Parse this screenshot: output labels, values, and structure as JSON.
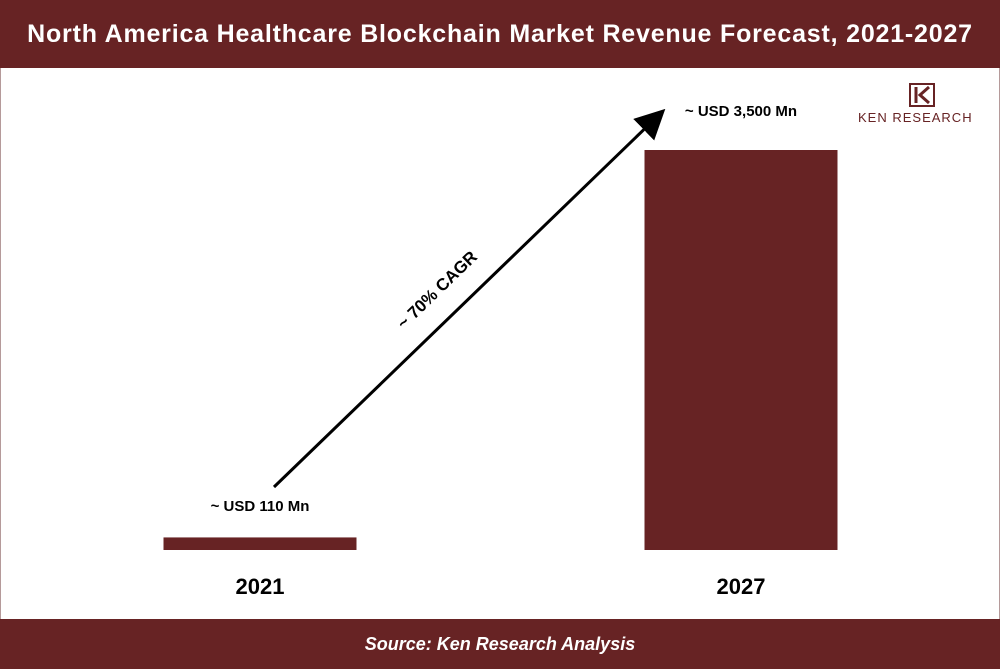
{
  "title": "North America Healthcare Blockchain Market Revenue Forecast, 2021-2027",
  "source": "Source: Ken Research Analysis",
  "brand": {
    "name": "KEN RESEARCH",
    "logo_icon": "ken-research-logo-icon"
  },
  "colors": {
    "bar": "#672324",
    "header": "#672324",
    "footer": "#672324",
    "text": "#000000",
    "arrow": "#000000"
  },
  "chart_data": {
    "type": "bar",
    "title": "North America Healthcare Blockchain Market Revenue Forecast, 2021-2027",
    "categories": [
      "2021",
      "2027"
    ],
    "values": [
      110,
      3500
    ],
    "value_labels": [
      "~ USD 110 Mn",
      "~ USD 3,500 Mn"
    ],
    "unit": "USD Mn",
    "ylim": [
      0,
      3500
    ],
    "grid": false,
    "legend": "none",
    "annotation": {
      "text": "~ 70% CAGR",
      "from": "2021",
      "to": "2027"
    }
  }
}
